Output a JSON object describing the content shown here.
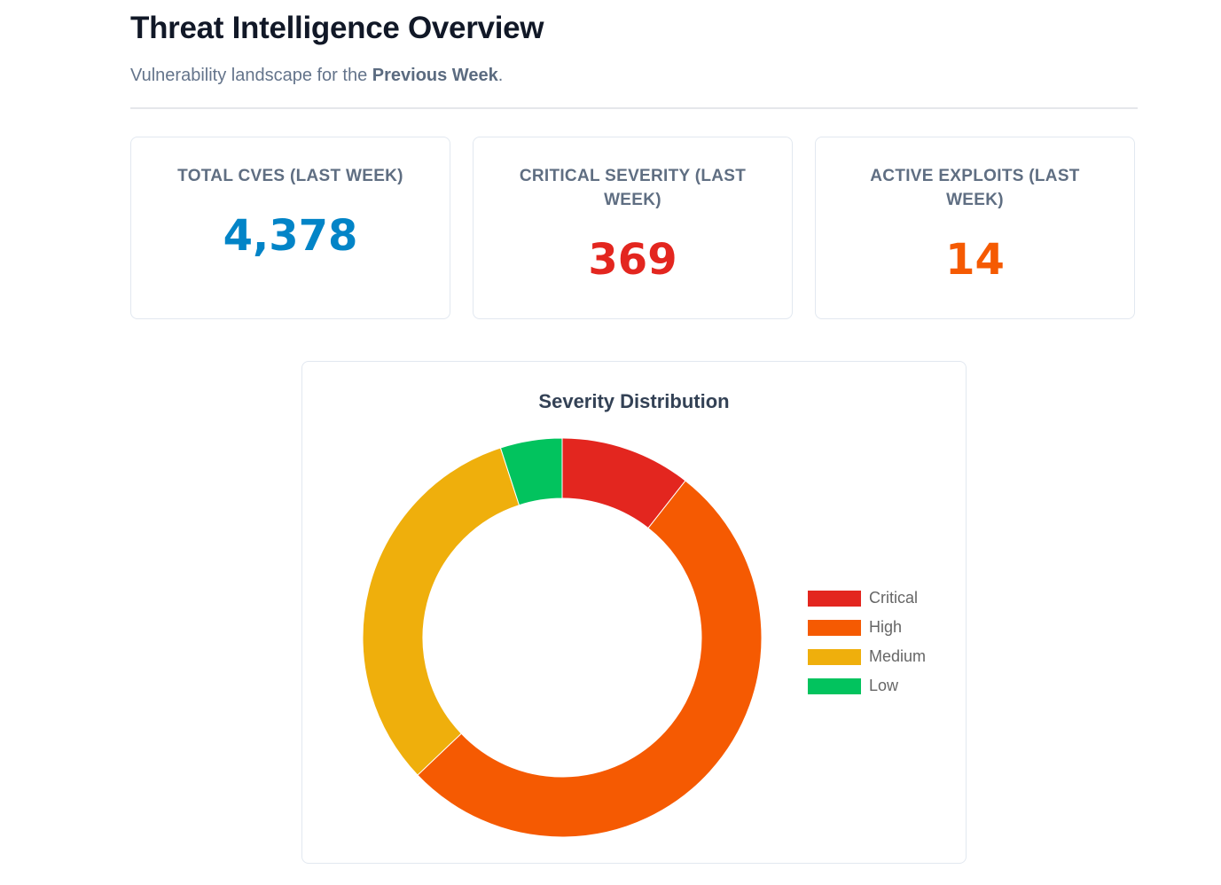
{
  "header": {
    "title": "Threat Intelligence Overview",
    "subtitle_prefix": "Vulnerability landscape for the ",
    "subtitle_emphasis": "Previous Week",
    "subtitle_suffix": "."
  },
  "stats": [
    {
      "label": "Total CVEs (Last Week)",
      "value": "4,378",
      "color": "#0284c7"
    },
    {
      "label": "Critical Severity (Last Week)",
      "value": "369",
      "color": "#e3261f"
    },
    {
      "label": "Active Exploits (Last Week)",
      "value": "14",
      "color": "#f55a02"
    }
  ],
  "chart": {
    "title": "Severity Distribution"
  },
  "chart_data": {
    "type": "pie",
    "title": "Severity Distribution",
    "categories": [
      "Critical",
      "High",
      "Medium",
      "Low"
    ],
    "values": [
      10.6,
      52.3,
      32.1,
      5.0
    ],
    "colors": [
      "#e3261f",
      "#f55a02",
      "#efaf0c",
      "#02c35e"
    ],
    "donut": true,
    "legend_position": "right"
  }
}
